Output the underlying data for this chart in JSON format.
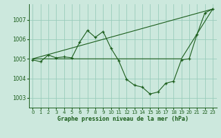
{
  "title": "Graphe pression niveau de la mer (hPa)",
  "bg_color": "#cce8dd",
  "grid_color": "#99ccbb",
  "line_color": "#1a5c1a",
  "xlim": [
    -0.5,
    23.5
  ],
  "ylim": [
    1002.5,
    1007.8
  ],
  "yticks": [
    1003,
    1004,
    1005,
    1006,
    1007
  ],
  "xticks": [
    0,
    1,
    2,
    3,
    4,
    5,
    6,
    7,
    8,
    9,
    10,
    11,
    12,
    13,
    14,
    15,
    16,
    17,
    18,
    19,
    20,
    21,
    22,
    23
  ],
  "series1_x": [
    0,
    1,
    2,
    3,
    4,
    5,
    6,
    7,
    8,
    9,
    10,
    11,
    12,
    13,
    14,
    15,
    16,
    17,
    18,
    19,
    20,
    21,
    22,
    23
  ],
  "series1_y": [
    1004.95,
    1004.85,
    1005.2,
    1005.05,
    1005.1,
    1005.05,
    1005.85,
    1006.45,
    1006.1,
    1006.4,
    1005.55,
    1004.9,
    1003.95,
    1003.65,
    1003.55,
    1003.2,
    1003.3,
    1003.75,
    1003.85,
    1004.95,
    1005.0,
    1006.25,
    1007.35,
    1007.55
  ],
  "series2_x": [
    0,
    23
  ],
  "series2_y": [
    1005.0,
    1007.55
  ],
  "series3_x": [
    0,
    19,
    23
  ],
  "series3_y": [
    1005.0,
    1005.0,
    1007.55
  ]
}
